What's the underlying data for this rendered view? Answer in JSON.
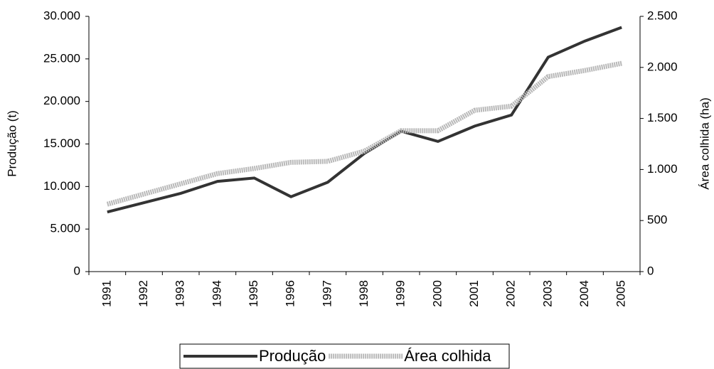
{
  "chart_data": {
    "type": "line",
    "y_label": "Produção (t)",
    "y2_label": "Área colhida (ha)",
    "categories": [
      "1991",
      "1992",
      "1993",
      "1994",
      "1995",
      "1996",
      "1997",
      "1998",
      "1999",
      "2000",
      "2001",
      "2002",
      "2003",
      "2004",
      "2005"
    ],
    "series": [
      {
        "name": "Produção",
        "color": "#333333",
        "axis": "y",
        "values": [
          7000,
          8100,
          9200,
          10600,
          11000,
          8800,
          10500,
          13900,
          16500,
          15300,
          17100,
          18400,
          25200,
          27100,
          28700
        ]
      },
      {
        "name": "Área colhida",
        "color": "#b8b8b8",
        "axis": "y2",
        "values": [
          660,
          760,
          860,
          960,
          1010,
          1070,
          1080,
          1180,
          1380,
          1380,
          1580,
          1620,
          1910,
          1970,
          2040
        ]
      }
    ],
    "ylim": [
      0,
      30000
    ],
    "yticks": [
      0,
      {
        "value": 5000,
        "label": "5.000"
      },
      {
        "value": 10000,
        "label": "10.000"
      },
      {
        "value": 15000,
        "label": "15.000"
      },
      {
        "value": 20000,
        "label": "20.000"
      },
      {
        "value": 25000,
        "label": "25.000"
      },
      {
        "value": 30000,
        "label": "30.000"
      }
    ],
    "y2lim": [
      0,
      2500
    ],
    "y2ticks": [
      0,
      500,
      {
        "value": 1000,
        "label": "1.000"
      },
      {
        "value": 1500,
        "label": "1.500"
      },
      {
        "value": 2000,
        "label": "2.000"
      },
      {
        "value": 2500,
        "label": "2.500"
      }
    ],
    "grid": false,
    "legend": "bottom"
  }
}
